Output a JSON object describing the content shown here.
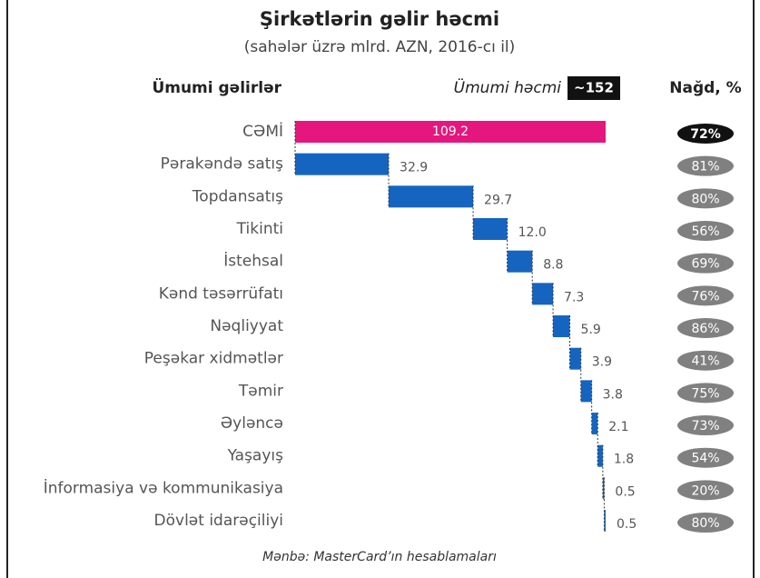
{
  "chart_data": {
    "type": "waterfall",
    "title": "Şirkətlərin gəlir həcmi",
    "subtitle": "(sahələr üzrə mlrd. AZN, 2016-cı il)",
    "total_note": {
      "label": "Ümumi həcmi",
      "value": "~152"
    },
    "categories": [
      "CƏMİ",
      "Pərakəndə satış",
      "Topdansatış",
      "Tikinti",
      "İstehsal",
      "Kənd təsərrüfatı",
      "Nəqliyyat",
      "Peşəkar xidmətlər",
      "Təmir",
      "Əyləncə",
      "Yaşayış",
      "İnformasiya və kommunikasiya",
      "Dövlət idarəçiliyi"
    ],
    "xlim": [
      0,
      109.2
    ],
    "series": [
      {
        "name": "Ümumi gəlirlər",
        "color": "#1565c0",
        "total_color": "#e5177e",
        "values": [
          109.2,
          32.9,
          29.7,
          12.0,
          8.8,
          7.3,
          5.9,
          3.9,
          3.8,
          2.1,
          1.8,
          0.5,
          0.5
        ],
        "value_labels": [
          "109.2",
          "32.9",
          "29.7",
          "12.0",
          "8.8",
          "7.3",
          "5.9",
          "3.9",
          "3.8",
          "2.1",
          "1.8",
          "0.5",
          "0.5"
        ]
      },
      {
        "name": "Nağd, %",
        "color": "#808080",
        "total_color": "#111111",
        "values": [
          72,
          81,
          80,
          56,
          69,
          76,
          86,
          41,
          75,
          73,
          54,
          20,
          80
        ],
        "value_labels": [
          "72%",
          "81%",
          "80%",
          "56%",
          "69%",
          "76%",
          "86%",
          "41%",
          "75%",
          "73%",
          "54%",
          "20%",
          "80%"
        ]
      }
    ],
    "source": "Mənbə: MasterCard’ın hesablamaları"
  }
}
